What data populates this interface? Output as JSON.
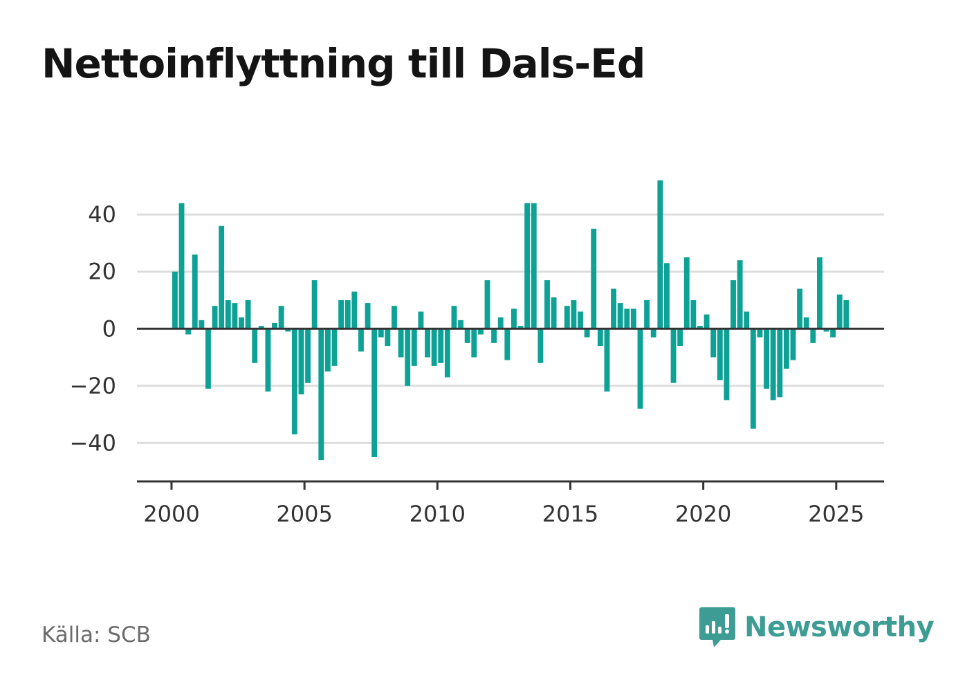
{
  "title": "Nettoinflyttning till Dals-Ed",
  "source": "Källa: SCB",
  "brand": {
    "name": "Newsworthy",
    "icon": "newsworthy-logo-icon",
    "color": "#3d9c94"
  },
  "colors": {
    "bar": "#0ea196",
    "grid": "#dddddd",
    "axis": "#333333"
  },
  "chart_data": {
    "type": "bar",
    "title": "Nettoinflyttning till Dals-Ed",
    "xlabel": "",
    "ylabel": "",
    "x_ticks": [
      "2000",
      "2005",
      "2010",
      "2015",
      "2020",
      "2025"
    ],
    "y_ticks": [
      "40",
      "20",
      "0",
      "−20",
      "−40"
    ],
    "y_tick_values": [
      40,
      20,
      0,
      -20,
      -40
    ],
    "ylim": [
      -53,
      57
    ],
    "xlim": [
      1998.7,
      2026.8
    ],
    "grid": true,
    "legend": "none",
    "x_start": 2000.0,
    "x_step": 0.25,
    "series": [
      {
        "values": [
          20,
          44,
          -2,
          26,
          3,
          -21,
          8,
          36,
          10,
          9,
          4,
          10,
          -12,
          1,
          -22,
          2,
          8,
          -1,
          -37,
          -23,
          -19,
          17,
          -46,
          -15,
          -13,
          10,
          10,
          13,
          -8,
          9,
          -45,
          -3,
          -6,
          8,
          -10,
          -20,
          -13,
          6,
          -10,
          -13,
          -12,
          -17,
          8,
          3,
          -5,
          -10,
          -2,
          17,
          -5,
          4,
          -11,
          7,
          1,
          44,
          44,
          -12,
          17,
          11,
          0,
          8,
          10,
          6,
          -3,
          35,
          -6,
          -22,
          14,
          9,
          7,
          7,
          -28,
          10,
          -3,
          52,
          23,
          -19,
          -6,
          25,
          10,
          1,
          5,
          -10,
          -18,
          -25,
          17,
          24,
          6,
          -35,
          -3,
          -21,
          -25,
          -24,
          -14,
          -11,
          14,
          4,
          -5,
          25,
          -1,
          -3,
          12,
          10
        ]
      }
    ]
  }
}
